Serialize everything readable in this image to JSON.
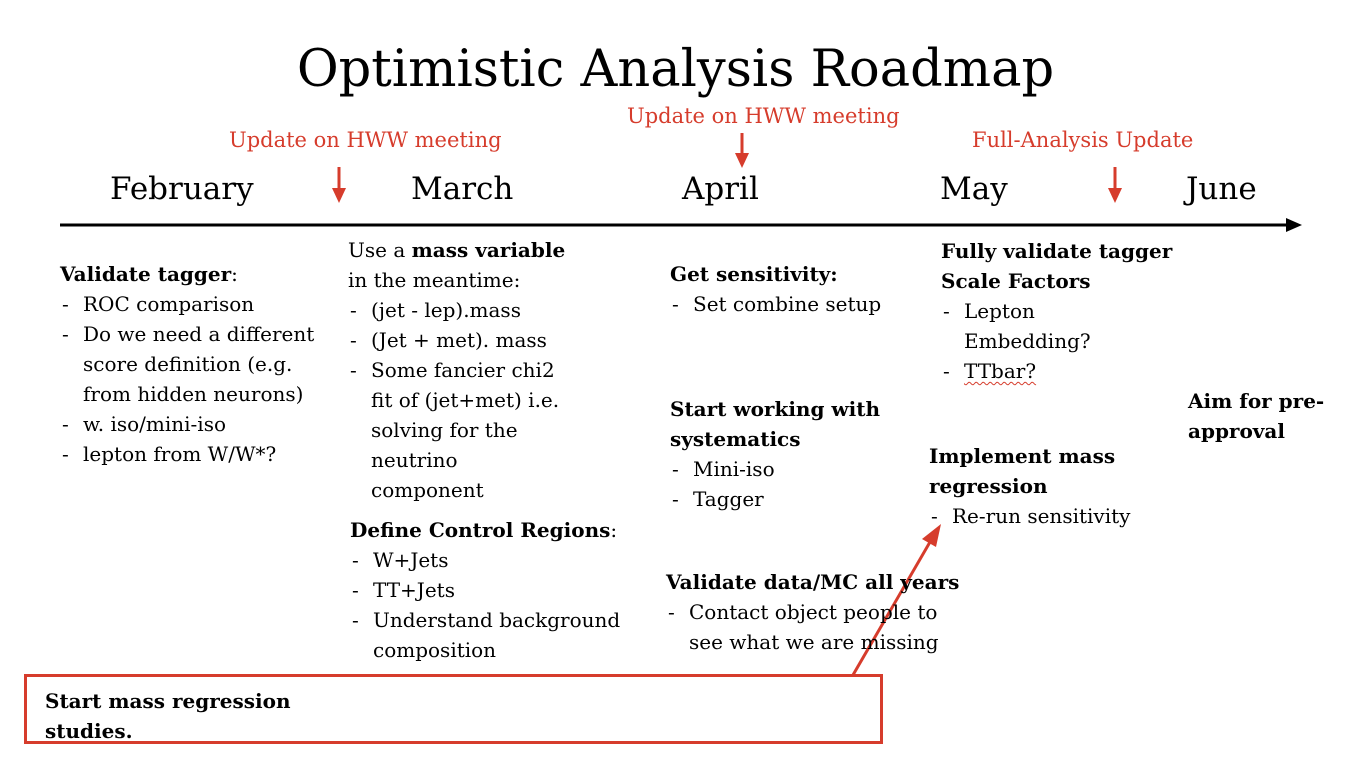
{
  "title": "Optimistic Analysis Roadmap",
  "annotations": [
    "Update on HWW meeting",
    "Update on HWW meeting",
    "Full-Analysis Update"
  ],
  "months": [
    "February",
    "March",
    "April",
    "May",
    "June"
  ],
  "february": {
    "heading": "Validate tagger",
    "heading_suffix": ":",
    "items": [
      [
        "ROC comparison"
      ],
      [
        "Do we need a different",
        "score definition (e.g.",
        "from hidden neurons)"
      ],
      [
        "w. iso/mini-iso"
      ],
      [
        "lepton from W/W*?"
      ]
    ]
  },
  "march": {
    "intro_pre": "Use a ",
    "intro_bold": "mass variable",
    "intro_line2": "in the meantime:",
    "items": [
      [
        "(jet - lep).mass"
      ],
      [
        "(Jet + met). mass"
      ],
      [
        "Some fancier chi2",
        "fit of (jet+met) i.e.",
        "solving for the",
        "neutrino",
        "component"
      ]
    ],
    "control_heading": "Define Control Regions",
    "control_suffix": ":",
    "control_items": [
      [
        "W+Jets"
      ],
      [
        "TT+Jets"
      ],
      [
        "Understand background",
        "composition"
      ]
    ]
  },
  "april": {
    "sens_heading": "Get sensitivity:",
    "sens_items": [
      [
        "Set combine setup"
      ]
    ],
    "syst_heading": [
      "Start working with",
      "systematics"
    ],
    "syst_items": [
      [
        "Mini-iso"
      ],
      [
        "Tagger"
      ]
    ],
    "valid_heading": "Validate data/MC all years",
    "valid_items": [
      [
        "Contact object people to",
        "see what we are missing"
      ]
    ]
  },
  "may": {
    "sf_heading": [
      "Fully validate tagger",
      "Scale Factors"
    ],
    "sf_items": [
      [
        "Lepton",
        "Embedding?"
      ],
      [
        "TTbar?"
      ]
    ],
    "reg_heading": [
      "Implement mass",
      "regression"
    ],
    "reg_items": [
      [
        "Re-run sensitivity"
      ]
    ]
  },
  "june": {
    "aim": [
      "Aim for pre-",
      "approval"
    ]
  },
  "callout": [
    "Start mass regression",
    "studies."
  ],
  "colors": {
    "accent": "#d63c2c",
    "text": "#000000",
    "background": "#ffffff"
  }
}
